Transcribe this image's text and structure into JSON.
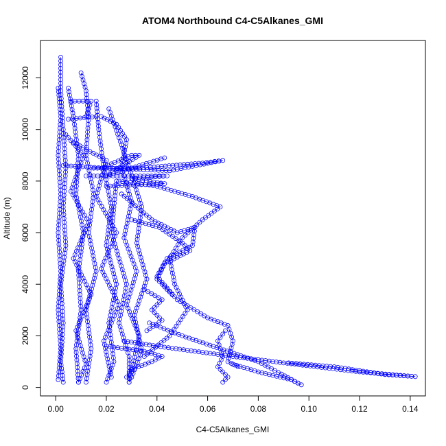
{
  "chart_data": {
    "type": "scatter",
    "title": "ATOM4 Northbound C4-C5Alkanes_GMI",
    "xlabel": "C4-C5Alkanes_GMI",
    "ylabel": "Altitude (m)",
    "xlim": [
      -0.006,
      0.146
    ],
    "ylim": [
      -330,
      13450
    ],
    "x_ticks": [
      0.0,
      0.02,
      0.04,
      0.06,
      0.08,
      0.1,
      0.12,
      0.14
    ],
    "x_tick_labels": [
      "0.00",
      "0.02",
      "0.04",
      "0.06",
      "0.08",
      "0.10",
      "0.12",
      "0.14"
    ],
    "y_ticks": [
      0,
      2000,
      4000,
      6000,
      8000,
      10000,
      12000
    ],
    "y_tick_labels": [
      "0",
      "2000",
      "4000",
      "6000",
      "8000",
      "10000",
      "12000"
    ],
    "grid": false,
    "marker": "open-circle",
    "connected": true,
    "color": "#0000ff",
    "series": [
      {
        "values": [
          [
            0.002,
            12800
          ],
          [
            0.002,
            11500
          ],
          [
            0.003,
            10000
          ],
          [
            0.004,
            8500
          ],
          [
            0.003,
            7000
          ],
          [
            0.004,
            5500
          ],
          [
            0.002,
            4000
          ],
          [
            0.003,
            2500
          ],
          [
            0.002,
            1000
          ],
          [
            0.003,
            200
          ]
        ]
      },
      {
        "values": [
          [
            0.001,
            11600
          ],
          [
            0.002,
            10500
          ],
          [
            0.001,
            9000
          ],
          [
            0.002,
            7500
          ],
          [
            0.001,
            6000
          ],
          [
            0.002,
            4500
          ],
          [
            0.001,
            3000
          ],
          [
            0.002,
            1500
          ],
          [
            0.001,
            300
          ]
        ]
      },
      {
        "values": [
          [
            0.01,
            12200
          ],
          [
            0.012,
            11500
          ],
          [
            0.013,
            10500
          ],
          [
            0.012,
            9000
          ],
          [
            0.015,
            7500
          ],
          [
            0.013,
            6000
          ],
          [
            0.016,
            4500
          ],
          [
            0.012,
            3000
          ],
          [
            0.014,
            1500
          ],
          [
            0.012,
            200
          ]
        ]
      },
      {
        "values": [
          [
            0.016,
            11100
          ],
          [
            0.017,
            10000
          ],
          [
            0.019,
            8500
          ],
          [
            0.022,
            7000
          ],
          [
            0.02,
            5500
          ],
          [
            0.024,
            4000
          ],
          [
            0.021,
            2500
          ],
          [
            0.023,
            1000
          ],
          [
            0.02,
            200
          ]
        ]
      },
      {
        "values": [
          [
            0.005,
            11600
          ],
          [
            0.007,
            10500
          ],
          [
            0.009,
            9000
          ],
          [
            0.008,
            7500
          ],
          [
            0.011,
            6000
          ],
          [
            0.009,
            4500
          ],
          [
            0.01,
            3000
          ],
          [
            0.008,
            1500
          ],
          [
            0.009,
            200
          ]
        ]
      },
      {
        "values": [
          [
            0.018,
            10500
          ],
          [
            0.024,
            10200
          ],
          [
            0.028,
            9600
          ],
          [
            0.026,
            8500
          ],
          [
            0.03,
            7200
          ],
          [
            0.027,
            5800
          ],
          [
            0.032,
            4500
          ],
          [
            0.028,
            3200
          ],
          [
            0.033,
            2000
          ],
          [
            0.029,
            200
          ]
        ]
      },
      {
        "values": [
          [
            0.006,
            11100
          ],
          [
            0.014,
            11100
          ],
          [
            0.012,
            10500
          ]
        ]
      },
      {
        "values": [
          [
            0.005,
            10400
          ],
          [
            0.016,
            10500
          ]
        ]
      },
      {
        "values": [
          [
            0.003,
            8600
          ],
          [
            0.02,
            8500
          ],
          [
            0.045,
            8400
          ],
          [
            0.066,
            8800
          ],
          [
            0.058,
            8700
          ],
          [
            0.033,
            8500
          ],
          [
            0.015,
            8500
          ]
        ]
      },
      {
        "values": [
          [
            0.012,
            8200
          ],
          [
            0.044,
            8200
          ],
          [
            0.03,
            8100
          ],
          [
            0.043,
            7900
          ],
          [
            0.02,
            7800
          ]
        ]
      },
      {
        "values": [
          [
            0.018,
            8500
          ],
          [
            0.03,
            9000
          ],
          [
            0.033,
            9000
          ],
          [
            0.02,
            8200
          ],
          [
            0.043,
            8900
          ]
        ]
      },
      {
        "values": [
          [
            0.025,
            8000
          ],
          [
            0.04,
            7800
          ],
          [
            0.054,
            7400
          ],
          [
            0.065,
            7000
          ],
          [
            0.058,
            6500
          ],
          [
            0.05,
            5800
          ],
          [
            0.045,
            5000
          ],
          [
            0.047,
            4000
          ],
          [
            0.052,
            3000
          ],
          [
            0.045,
            2000
          ],
          [
            0.035,
            1200
          ]
        ]
      },
      {
        "values": [
          [
            0.026,
            7500
          ],
          [
            0.038,
            6500
          ],
          [
            0.048,
            6000
          ],
          [
            0.055,
            6200
          ],
          [
            0.054,
            5500
          ],
          [
            0.044,
            5000
          ],
          [
            0.04,
            4300
          ],
          [
            0.048,
            3400
          ],
          [
            0.06,
            2700
          ],
          [
            0.068,
            2400
          ],
          [
            0.07,
            1800
          ],
          [
            0.068,
            1000
          ],
          [
            0.072,
            800
          ]
        ]
      },
      {
        "values": [
          [
            0.03,
            6500
          ],
          [
            0.041,
            6200
          ],
          [
            0.05,
            5600
          ],
          [
            0.053,
            5300
          ],
          [
            0.043,
            4800
          ],
          [
            0.04,
            4200
          ],
          [
            0.046,
            3600
          ]
        ]
      },
      {
        "values": [
          [
            0.067,
            2200
          ],
          [
            0.064,
            1800
          ],
          [
            0.066,
            1200
          ],
          [
            0.064,
            800
          ],
          [
            0.068,
            400
          ],
          [
            0.066,
            200
          ]
        ]
      },
      {
        "values": [
          [
            0.037,
            2500
          ],
          [
            0.05,
            2000
          ],
          [
            0.065,
            1500
          ],
          [
            0.08,
            1000
          ],
          [
            0.097,
            100
          ],
          [
            0.093,
            300
          ],
          [
            0.08,
            600
          ],
          [
            0.07,
            900
          ]
        ]
      },
      {
        "values": [
          [
            0.027,
            1800
          ],
          [
            0.04,
            1600
          ],
          [
            0.055,
            1400
          ],
          [
            0.07,
            1200
          ],
          [
            0.09,
            950
          ],
          [
            0.12,
            600
          ],
          [
            0.142,
            420
          ],
          [
            0.13,
            500
          ],
          [
            0.11,
            800
          ],
          [
            0.092,
            950
          ]
        ]
      },
      {
        "values": [
          [
            0.02,
            1600
          ],
          [
            0.035,
            1400
          ],
          [
            0.042,
            1200
          ],
          [
            0.038,
            1000
          ],
          [
            0.03,
            700
          ],
          [
            0.028,
            400
          ]
        ]
      },
      {
        "values": [
          [
            0.024,
            8000
          ],
          [
            0.022,
            6000
          ],
          [
            0.028,
            4000
          ],
          [
            0.025,
            2500
          ],
          [
            0.029,
            1200
          ],
          [
            0.029,
            200
          ]
        ]
      },
      {
        "values": [
          [
            0.007,
            9500
          ],
          [
            0.02,
            8800
          ],
          [
            0.016,
            7400
          ],
          [
            0.024,
            6000
          ],
          [
            0.018,
            4600
          ],
          [
            0.025,
            3200
          ],
          [
            0.019,
            1800
          ],
          [
            0.022,
            400
          ]
        ]
      },
      {
        "values": [
          [
            0.004,
            9800
          ],
          [
            0.011,
            9000
          ],
          [
            0.006,
            7600
          ],
          [
            0.013,
            6400
          ],
          [
            0.007,
            5000
          ],
          [
            0.014,
            3600
          ],
          [
            0.008,
            2200
          ],
          [
            0.012,
            900
          ],
          [
            0.009,
            200
          ]
        ]
      },
      {
        "values": [
          [
            0.035,
            3800
          ],
          [
            0.042,
            3400
          ],
          [
            0.038,
            3000
          ],
          [
            0.042,
            2600
          ],
          [
            0.036,
            2200
          ]
        ]
      },
      {
        "values": [
          [
            0.021,
            10800
          ],
          [
            0.026,
            9400
          ],
          [
            0.03,
            8200
          ],
          [
            0.034,
            7000
          ],
          [
            0.032,
            5600
          ],
          [
            0.036,
            4200
          ],
          [
            0.031,
            2800
          ],
          [
            0.034,
            1400
          ],
          [
            0.03,
            400
          ]
        ]
      }
    ]
  }
}
